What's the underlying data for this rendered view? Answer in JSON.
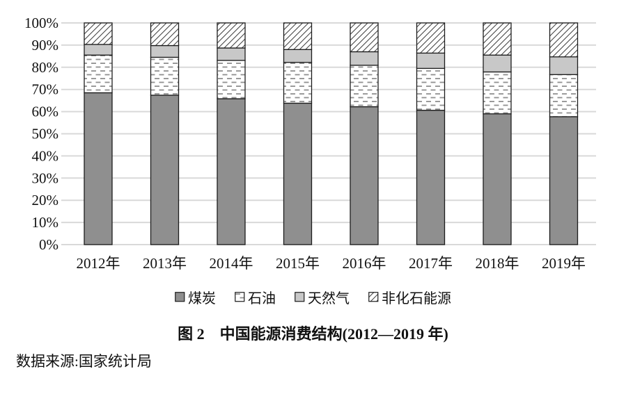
{
  "figure": {
    "title": "图 2　中国能源消费结构(2012—2019 年)",
    "source": "数据来源:国家统计局"
  },
  "chart_data": {
    "type": "bar",
    "stacked": true,
    "unit": "%",
    "title": "图 2　中国能源消费结构(2012—2019 年)",
    "source_note": "数据来源:国家统计局",
    "categories": [
      "2012年",
      "2013年",
      "2014年",
      "2015年",
      "2016年",
      "2017年",
      "2018年",
      "2019年"
    ],
    "series": [
      {
        "key": "coal",
        "name": "煤炭",
        "pattern": "solid-dark-gray",
        "values": [
          68.5,
          67.4,
          65.8,
          63.8,
          62.2,
          60.6,
          59.0,
          57.7
        ]
      },
      {
        "key": "oil",
        "name": "石油",
        "pattern": "white-with-dashes",
        "values": [
          17.0,
          17.1,
          17.3,
          18.4,
          18.7,
          18.9,
          18.9,
          19.0
        ]
      },
      {
        "key": "gas",
        "name": "天然气",
        "pattern": "solid-light-gray",
        "values": [
          4.8,
          5.3,
          5.6,
          5.8,
          6.1,
          6.9,
          7.6,
          8.0
        ]
      },
      {
        "key": "nonfossil",
        "name": "非化石能源",
        "pattern": "diagonal-hatch",
        "values": [
          9.7,
          10.2,
          11.3,
          12.0,
          13.0,
          13.6,
          14.5,
          15.3
        ]
      }
    ],
    "ylim": [
      0,
      100
    ],
    "ytick_labels": [
      "0%",
      "10%",
      "20%",
      "30%",
      "40%",
      "50%",
      "60%",
      "70%",
      "80%",
      "90%",
      "100%"
    ],
    "grid": "horizontal",
    "legend_position": "bottom",
    "colors": {
      "coal": "#8f8f8f",
      "gas": "#c8c8c8",
      "oil_dash": "#909090",
      "hatch_stroke": "#3f3f3f",
      "grid": "#d9d9d9",
      "segment_border": "#1c1c1c",
      "text": "#111111"
    }
  }
}
